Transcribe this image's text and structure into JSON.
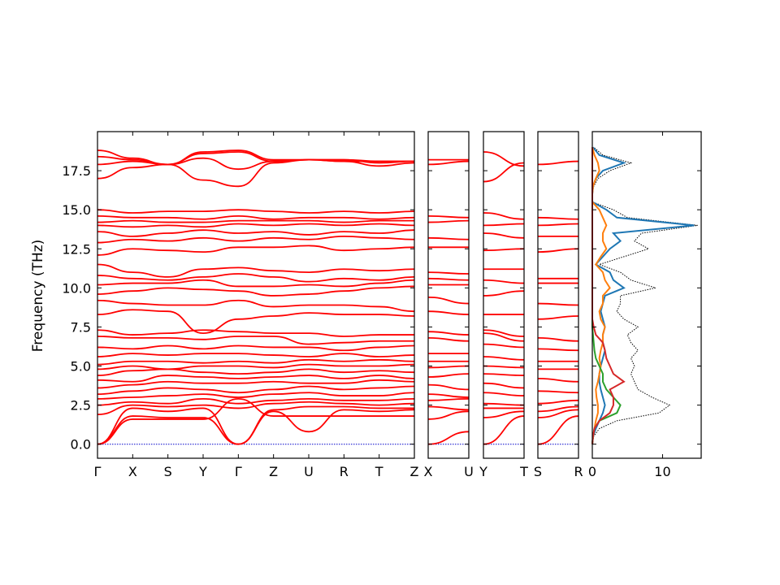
{
  "chart_data": {
    "type": "line",
    "ylabel": "Frequency (THz)",
    "ylim": [
      -0.9,
      20.0
    ],
    "y_ticks": [
      "0.0",
      "2.5",
      "5.0",
      "7.5",
      "10.0",
      "12.5",
      "15.0",
      "17.5"
    ],
    "y_tick_values": [
      0,
      2.5,
      5,
      7.5,
      10,
      12.5,
      15,
      17.5
    ],
    "band_color": "#ff0000",
    "zero_line_color": "#0000cc",
    "panels": [
      {
        "name": "main-path",
        "x_labels": [
          "Γ",
          "X",
          "S",
          "Y",
          "Γ",
          "Z",
          "U",
          "R",
          "T",
          "Z"
        ],
        "branches": [
          [
            0.0,
            1.6,
            1.6,
            1.6,
            2.9,
            1.8,
            1.8,
            1.8,
            1.8,
            1.8
          ],
          [
            0.0,
            1.8,
            1.7,
            1.7,
            0.0,
            2.1,
            0.8,
            2.2,
            2.1,
            2.2
          ],
          [
            0.0,
            2.3,
            2.1,
            2.3,
            0.0,
            2.2,
            2.4,
            2.4,
            2.3,
            2.3
          ],
          [
            1.9,
            2.5,
            2.4,
            2.5,
            2.3,
            2.6,
            2.7,
            2.6,
            2.5,
            2.6
          ],
          [
            2.5,
            2.7,
            2.6,
            2.9,
            2.6,
            2.8,
            2.9,
            2.8,
            2.8,
            2.9
          ],
          [
            2.9,
            3.0,
            3.1,
            3.2,
            3.0,
            3.2,
            3.3,
            3.1,
            3.1,
            3.3
          ],
          [
            3.2,
            3.4,
            3.6,
            3.5,
            3.3,
            3.5,
            3.7,
            3.5,
            3.6,
            3.7
          ],
          [
            3.6,
            3.8,
            4.0,
            3.9,
            3.9,
            4.0,
            3.9,
            3.9,
            4.1,
            4.0
          ],
          [
            4.1,
            4.0,
            4.4,
            4.3,
            4.2,
            4.3,
            4.4,
            4.2,
            4.4,
            4.2
          ],
          [
            4.4,
            4.7,
            4.8,
            4.6,
            4.5,
            4.6,
            4.8,
            4.6,
            4.7,
            4.6
          ],
          [
            4.8,
            5.0,
            4.8,
            5.0,
            5.0,
            4.9,
            5.1,
            5.0,
            5.0,
            5.1
          ],
          [
            5.1,
            5.3,
            5.3,
            5.2,
            5.3,
            5.2,
            5.4,
            5.3,
            5.4,
            5.3
          ],
          [
            5.6,
            5.8,
            5.7,
            5.8,
            5.8,
            5.7,
            5.6,
            5.8,
            5.6,
            5.7
          ],
          [
            6.2,
            6.1,
            6.3,
            6.1,
            6.3,
            6.2,
            6.2,
            6.0,
            6.2,
            6.3
          ],
          [
            6.9,
            6.8,
            6.8,
            6.7,
            6.9,
            6.9,
            6.4,
            6.5,
            6.6,
            6.6
          ],
          [
            7.3,
            7.0,
            7.1,
            7.3,
            7.2,
            7.1,
            7.1,
            6.9,
            7.0,
            7.0
          ],
          [
            8.3,
            8.6,
            8.5,
            7.1,
            8.0,
            8.2,
            8.4,
            8.3,
            8.3,
            8.2
          ],
          [
            9.2,
            9.0,
            8.9,
            8.9,
            9.2,
            8.8,
            8.9,
            8.9,
            8.8,
            8.5
          ],
          [
            9.6,
            9.8,
            10.0,
            9.9,
            9.8,
            9.5,
            9.6,
            9.8,
            10.0,
            10.1
          ],
          [
            10.2,
            10.3,
            10.3,
            10.5,
            10.1,
            10.1,
            10.2,
            10.1,
            10.3,
            10.5
          ],
          [
            10.8,
            10.6,
            10.5,
            10.7,
            10.9,
            10.7,
            10.4,
            10.6,
            10.5,
            10.7
          ],
          [
            11.5,
            11.0,
            10.7,
            11.2,
            11.3,
            11.1,
            11.0,
            11.2,
            11.1,
            11.2
          ],
          [
            12.1,
            12.5,
            12.4,
            12.3,
            12.6,
            12.6,
            12.7,
            12.4,
            12.5,
            12.6
          ],
          [
            12.9,
            13.1,
            13.0,
            13.2,
            13.0,
            13.2,
            13.1,
            13.3,
            13.2,
            13.1
          ],
          [
            13.6,
            13.3,
            13.5,
            13.7,
            13.5,
            13.6,
            13.4,
            13.6,
            13.5,
            13.7
          ],
          [
            14.0,
            13.9,
            14.0,
            13.9,
            14.1,
            14.0,
            14.1,
            14.0,
            14.1,
            14.0
          ],
          [
            14.2,
            14.3,
            14.2,
            14.2,
            14.3,
            14.3,
            14.3,
            14.2,
            14.3,
            14.3
          ],
          [
            14.6,
            14.5,
            14.5,
            14.4,
            14.6,
            14.4,
            14.5,
            14.5,
            14.4,
            14.5
          ],
          [
            15.0,
            14.8,
            14.9,
            14.9,
            15.0,
            14.9,
            14.8,
            14.9,
            14.8,
            14.9
          ],
          [
            17.0,
            17.7,
            17.9,
            16.9,
            16.5,
            18.0,
            18.2,
            18.1,
            18.1,
            18.1
          ],
          [
            17.9,
            18.1,
            17.9,
            18.3,
            17.6,
            18.1,
            18.2,
            18.1,
            17.8,
            18.0
          ],
          [
            18.4,
            18.2,
            17.9,
            18.6,
            18.7,
            18.1,
            18.2,
            18.2,
            18.0,
            18.1
          ],
          [
            18.8,
            18.3,
            17.9,
            18.7,
            18.8,
            18.2,
            18.2,
            18.2,
            18.1,
            18.1
          ]
        ]
      },
      {
        "name": "x-u",
        "x_labels": [
          "X",
          "U"
        ],
        "branches": [
          [
            0.0,
            0.8
          ],
          [
            1.6,
            2.1
          ],
          [
            2.4,
            2.2
          ],
          [
            2.8,
            2.9
          ],
          [
            3.2,
            3.0
          ],
          [
            3.8,
            3.5
          ],
          [
            4.3,
            4.5
          ],
          [
            4.9,
            5.0
          ],
          [
            5.3,
            5.3
          ],
          [
            5.8,
            5.8
          ],
          [
            6.8,
            6.6
          ],
          [
            7.2,
            7.0
          ],
          [
            8.5,
            8.3
          ],
          [
            9.4,
            9.0
          ],
          [
            10.2,
            10.2
          ],
          [
            10.6,
            10.5
          ],
          [
            11.0,
            10.9
          ],
          [
            12.6,
            12.6
          ],
          [
            13.2,
            13.1
          ],
          [
            14.2,
            14.3
          ],
          [
            14.6,
            14.5
          ],
          [
            17.9,
            18.1
          ],
          [
            18.2,
            18.2
          ]
        ]
      },
      {
        "name": "y-t",
        "x_labels": [
          "Y",
          "T"
        ],
        "branches": [
          [
            0.0,
            1.8
          ],
          [
            1.7,
            2.1
          ],
          [
            2.3,
            2.3
          ],
          [
            2.6,
            2.5
          ],
          [
            3.3,
            3.1
          ],
          [
            3.9,
            3.6
          ],
          [
            4.5,
            4.4
          ],
          [
            5.0,
            4.9
          ],
          [
            5.6,
            5.4
          ],
          [
            6.4,
            6.2
          ],
          [
            7.3,
            6.9
          ],
          [
            7.1,
            6.6
          ],
          [
            8.3,
            8.3
          ],
          [
            9.5,
            9.8
          ],
          [
            10.5,
            10.3
          ],
          [
            11.2,
            11.2
          ],
          [
            12.4,
            12.5
          ],
          [
            13.5,
            13.2
          ],
          [
            14.0,
            14.1
          ],
          [
            14.8,
            14.4
          ],
          [
            16.8,
            18.0
          ],
          [
            18.7,
            17.8
          ]
        ]
      },
      {
        "name": "s-r",
        "x_labels": [
          "S",
          "R"
        ],
        "branches": [
          [
            0.0,
            1.8
          ],
          [
            1.7,
            2.2
          ],
          [
            2.1,
            2.4
          ],
          [
            2.6,
            2.8
          ],
          [
            3.4,
            3.3
          ],
          [
            4.2,
            4.0
          ],
          [
            4.8,
            4.8
          ],
          [
            5.3,
            5.3
          ],
          [
            6.1,
            6.0
          ],
          [
            6.8,
            6.6
          ],
          [
            8.0,
            8.2
          ],
          [
            9.0,
            8.9
          ],
          [
            10.3,
            10.3
          ],
          [
            10.6,
            10.6
          ],
          [
            12.3,
            12.5
          ],
          [
            13.3,
            13.3
          ],
          [
            14.0,
            14.1
          ],
          [
            14.5,
            14.4
          ],
          [
            17.9,
            18.1
          ]
        ]
      }
    ],
    "dos": {
      "x_ticks": [
        "0",
        "10"
      ],
      "x_tick_values": [
        0,
        10
      ],
      "xlim": [
        0,
        15.5
      ],
      "y": [
        0.0,
        0.5,
        1.0,
        1.5,
        2.0,
        2.5,
        3.0,
        3.5,
        4.0,
        4.5,
        5.0,
        5.5,
        6.0,
        6.5,
        7.0,
        7.5,
        8.0,
        8.5,
        9.0,
        9.5,
        10.0,
        10.5,
        11.0,
        11.5,
        12.0,
        12.5,
        13.0,
        13.5,
        14.0,
        14.5,
        15.0,
        15.5,
        16.0,
        16.5,
        17.0,
        17.5,
        18.0,
        18.5,
        19.0
      ],
      "series": [
        {
          "color": "#000000",
          "dotted": true,
          "values": [
            0.0,
            0.2,
            1.0,
            3.5,
            9.5,
            11.0,
            8.5,
            6.5,
            6.0,
            5.5,
            6.0,
            5.5,
            6.5,
            5.5,
            5.0,
            6.5,
            4.5,
            3.5,
            4.0,
            4.0,
            9.0,
            5.5,
            4.0,
            1.0,
            4.5,
            8.0,
            6.0,
            7.0,
            15.0,
            5.0,
            3.0,
            0.0,
            0.0,
            0.2,
            0.8,
            2.5,
            5.5,
            1.5,
            0.2
          ]
        },
        {
          "color": "#1f77b4",
          "dotted": false,
          "values": [
            0.0,
            0.1,
            0.5,
            1.0,
            1.5,
            1.8,
            1.5,
            1.2,
            1.0,
            1.0,
            1.2,
            1.5,
            1.8,
            1.5,
            1.5,
            1.8,
            1.5,
            1.2,
            1.5,
            1.8,
            4.5,
            3.0,
            2.5,
            0.5,
            1.5,
            2.5,
            4.0,
            3.0,
            14.5,
            3.5,
            2.0,
            0.0,
            0.0,
            0.1,
            0.5,
            1.5,
            4.5,
            1.0,
            0.1
          ]
        },
        {
          "color": "#ff7f0e",
          "dotted": false,
          "values": [
            0.0,
            0.1,
            0.3,
            0.5,
            0.8,
            0.8,
            0.6,
            0.5,
            0.8,
            1.0,
            1.2,
            1.0,
            1.2,
            1.5,
            1.5,
            1.8,
            1.2,
            1.0,
            1.5,
            1.5,
            2.5,
            1.8,
            1.5,
            0.5,
            1.2,
            2.0,
            1.5,
            1.5,
            2.0,
            1.5,
            1.0,
            0.0,
            0.0,
            0.1,
            0.5,
            1.0,
            0.8,
            0.3,
            0.0
          ]
        },
        {
          "color": "#2ca02c",
          "dotted": false,
          "values": [
            0.0,
            0.1,
            0.3,
            1.0,
            3.5,
            4.0,
            3.0,
            2.0,
            1.5,
            1.5,
            1.0,
            0.5,
            0.3,
            0.2,
            0.1,
            0.0,
            0.0,
            0.0,
            0.0,
            0.0,
            0.0,
            0.0,
            0.0,
            0.0,
            0.0,
            0.0,
            0.0,
            0.0,
            0.0,
            0.0,
            0.0,
            0.0,
            0.0,
            0.0,
            0.0,
            0.0,
            0.0,
            0.0,
            0.0
          ]
        },
        {
          "color": "#d62728",
          "dotted": false,
          "values": [
            0.0,
            0.1,
            0.3,
            1.0,
            2.5,
            3.0,
            3.0,
            2.5,
            4.5,
            3.0,
            2.5,
            2.0,
            1.8,
            1.5,
            0.5,
            0.2,
            0.0,
            0.0,
            0.0,
            0.0,
            0.0,
            0.0,
            0.0,
            0.0,
            0.0,
            0.0,
            0.0,
            0.0,
            0.0,
            0.0,
            0.0,
            0.0,
            0.0,
            0.0,
            0.0,
            0.0,
            0.0,
            0.0,
            0.0
          ]
        }
      ]
    }
  }
}
